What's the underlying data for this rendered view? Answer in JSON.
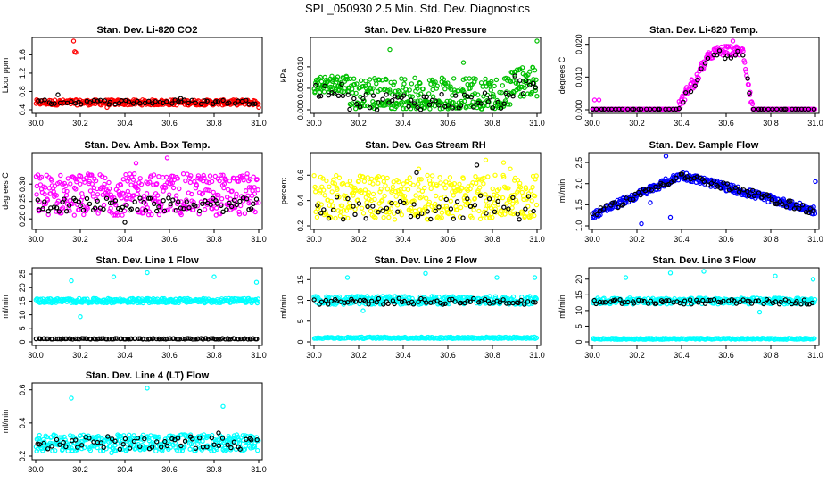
{
  "title": "SPL_050930  2.5 Min. Std. Dev. Diagnostics",
  "colors": {
    "black": "#000000",
    "red": "#ff0000",
    "green": "#00c000",
    "magenta": "#ff00ff",
    "yellow": "#ffff00",
    "blue": "#0000ff",
    "cyan": "#00ffff"
  },
  "chart_data": [
    {
      "type": "scatter",
      "title": "Stan. Dev. Li-820 CO2",
      "ylabel": "Licor ppm",
      "xlim": [
        30.0,
        31.0
      ],
      "ylim": [
        0.4,
        1.9
      ],
      "xticks": [
        30.0,
        30.2,
        30.4,
        30.6,
        30.8,
        31.0
      ],
      "xtick_labels": [
        "30.0",
        "30.2",
        "30.4",
        "30.6",
        "30.8",
        "31.0"
      ],
      "yticks": [
        0.4,
        0.8,
        1.2,
        1.6
      ],
      "ytick_labels": [
        "0.4",
        "0.8",
        "1.2",
        "1.6"
      ],
      "series": [
        {
          "color": "red",
          "band": [
            0.5,
            0.62
          ],
          "n": 330,
          "outliers": [
            [
              30.17,
              1.9
            ],
            [
              30.175,
              1.67
            ],
            [
              30.18,
              1.65
            ],
            [
              30.32,
              0.45
            ],
            [
              31.0,
              0.45
            ]
          ]
        },
        {
          "color": "black",
          "band": [
            0.52,
            0.62
          ],
          "n": 60,
          "outliers": [
            [
              30.1,
              0.73
            ],
            [
              30.65,
              0.65
            ]
          ]
        }
      ]
    },
    {
      "type": "scatter",
      "title": "Stan. Dev. Li-820 Pressure",
      "ylabel": "kPa",
      "xlim": [
        30.0,
        31.0
      ],
      "ylim": [
        0.0,
        0.016
      ],
      "xticks": [
        30.0,
        30.2,
        30.4,
        30.6,
        30.8,
        31.0
      ],
      "xtick_labels": [
        "30.0",
        "30.2",
        "30.4",
        "30.6",
        "30.8",
        "31.0"
      ],
      "yticks": [
        0.0,
        0.005,
        0.01
      ],
      "ytick_labels": [
        "0.000",
        "0.005",
        "0.010"
      ],
      "series": [
        {
          "color": "green",
          "shape": "pressure",
          "n": 420,
          "outliers": [
            [
              30.34,
              0.014
            ],
            [
              30.67,
              0.011
            ],
            [
              31.0,
              0.0165
            ]
          ]
        },
        {
          "color": "black",
          "shape": "pressure_low",
          "n": 70,
          "outliers": []
        }
      ]
    },
    {
      "type": "scatter",
      "title": "Stan. Dev. Li-820 Temp.",
      "ylabel": "degrees C",
      "xlim": [
        30.0,
        31.0
      ],
      "ylim": [
        0.0,
        0.021
      ],
      "xticks": [
        30.0,
        30.2,
        30.4,
        30.6,
        30.8,
        31.0
      ],
      "xtick_labels": [
        "30.0",
        "30.2",
        "30.4",
        "30.6",
        "30.8",
        "31.0"
      ],
      "yticks": [
        0.0,
        0.01,
        0.02
      ],
      "ytick_labels": [
        "0.000",
        "0.010",
        "0.020"
      ],
      "series": [
        {
          "color": "magenta",
          "shape": "hump",
          "n": 320,
          "outliers": [
            [
              30.01,
              0.003
            ],
            [
              30.03,
              0.003
            ],
            [
              30.63,
              0.021
            ]
          ]
        },
        {
          "color": "black",
          "shape": "hump_low",
          "n": 60,
          "outliers": []
        }
      ]
    },
    {
      "type": "scatter",
      "title": "Stan. Dev. Amb. Box Temp.",
      "ylabel": "degrees C",
      "xlim": [
        30.0,
        31.0
      ],
      "ylim": [
        0.18,
        0.38
      ],
      "xticks": [
        30.0,
        30.2,
        30.4,
        30.6,
        30.8,
        31.0
      ],
      "xtick_labels": [
        "30.0",
        "30.2",
        "30.4",
        "30.6",
        "30.8",
        "31.0"
      ],
      "yticks": [
        0.2,
        0.25,
        0.3
      ],
      "ytick_labels": [
        "0.20",
        "0.25",
        "0.30"
      ],
      "series": [
        {
          "color": "magenta",
          "band": [
            0.21,
            0.33
          ],
          "n": 380,
          "outliers": [
            [
              30.59,
              0.375
            ],
            [
              30.45,
              0.36
            ]
          ]
        },
        {
          "color": "black",
          "band": [
            0.22,
            0.26
          ],
          "n": 80,
          "outliers": [
            [
              30.4,
              0.19
            ]
          ]
        }
      ]
    },
    {
      "type": "scatter",
      "title": "Stan. Dev. Gas Stream RH",
      "ylabel": "percent",
      "xlim": [
        30.0,
        31.0
      ],
      "ylim": [
        0.2,
        0.75
      ],
      "xticks": [
        30.0,
        30.2,
        30.4,
        30.6,
        30.8,
        31.0
      ],
      "xtick_labels": [
        "30.0",
        "30.2",
        "30.4",
        "30.6",
        "30.8",
        "31.0"
      ],
      "yticks": [
        0.2,
        0.4,
        0.6
      ],
      "ytick_labels": [
        "0.2",
        "0.4",
        "0.6"
      ],
      "series": [
        {
          "color": "yellow",
          "band": [
            0.25,
            0.6
          ],
          "n": 380,
          "outliers": [
            [
              30.77,
              0.72
            ],
            [
              30.85,
              0.7
            ],
            [
              30.47,
              0.65
            ],
            [
              30.88,
              0.65
            ]
          ]
        },
        {
          "color": "black",
          "band": [
            0.25,
            0.45
          ],
          "n": 50,
          "outliers": [
            [
              30.46,
              0.62
            ],
            [
              30.73,
              0.68
            ]
          ]
        }
      ]
    },
    {
      "type": "scatter",
      "title": "Stan. Dev. Sample Flow",
      "ylabel": "ml/min",
      "xlim": [
        30.0,
        31.0
      ],
      "ylim": [
        1.0,
        2.65
      ],
      "xticks": [
        30.0,
        30.2,
        30.4,
        30.6,
        30.8,
        31.0
      ],
      "xtick_labels": [
        "30.0",
        "30.2",
        "30.4",
        "30.6",
        "30.8",
        "31.0"
      ],
      "yticks": [
        1.0,
        1.5,
        2.0,
        2.5
      ],
      "ytick_labels": [
        "1.0",
        "1.5",
        "2.0",
        "2.5"
      ],
      "series": [
        {
          "color": "blue",
          "shape": "arch",
          "n": 340,
          "outliers": [
            [
              30.33,
              2.65
            ],
            [
              30.26,
              1.55
            ],
            [
              30.35,
              1.2
            ],
            [
              30.22,
              1.05
            ],
            [
              31.0,
              2.05
            ]
          ]
        },
        {
          "color": "black",
          "shape": "arch",
          "n": 80,
          "outliers": []
        }
      ]
    },
    {
      "type": "scatter",
      "title": "Stan. Dev. Line 1 Flow",
      "ylabel": "ml/min",
      "xlim": [
        30.0,
        31.0
      ],
      "ylim": [
        0,
        26
      ],
      "xticks": [
        30.0,
        30.2,
        30.4,
        30.6,
        30.8,
        31.0
      ],
      "xtick_labels": [
        "30.0",
        "30.2",
        "30.4",
        "30.6",
        "30.8",
        "31.0"
      ],
      "yticks": [
        0,
        5,
        10,
        15,
        20,
        25
      ],
      "ytick_labels": [
        "0",
        "5",
        "10",
        "15",
        "20",
        "25"
      ],
      "series": [
        {
          "color": "cyan",
          "band": [
            14.3,
            16
          ],
          "n": 300,
          "outliers": [
            [
              30.16,
              22.5
            ],
            [
              30.2,
              9.3
            ],
            [
              30.35,
              24
            ],
            [
              30.5,
              25.5
            ],
            [
              30.8,
              24
            ],
            [
              30.99,
              22
            ]
          ]
        },
        {
          "color": "black",
          "band": [
            1,
            1.3
          ],
          "n": 110,
          "outliers": []
        }
      ]
    },
    {
      "type": "scatter",
      "title": "Stan. Dev. Line 2 Flow",
      "ylabel": "ml/min",
      "xlim": [
        30.0,
        31.0
      ],
      "ylim": [
        0,
        17
      ],
      "xticks": [
        30.0,
        30.2,
        30.4,
        30.6,
        30.8,
        31.0
      ],
      "xtick_labels": [
        "30.0",
        "30.2",
        "30.4",
        "30.6",
        "30.8",
        "31.0"
      ],
      "yticks": [
        0,
        5,
        10,
        15
      ],
      "ytick_labels": [
        "0",
        "5",
        "10",
        "15"
      ],
      "series": [
        {
          "color": "cyan",
          "band": [
            9,
            11
          ],
          "n": 300,
          "outliers": [
            [
              30.15,
              15.5
            ],
            [
              30.5,
              16.5
            ],
            [
              30.82,
              15.5
            ],
            [
              30.99,
              15.5
            ],
            [
              30.22,
              7.5
            ]
          ]
        },
        {
          "color": "cyan",
          "band": [
            0.8,
            1.2
          ],
          "n": 200,
          "outliers": []
        },
        {
          "color": "black",
          "band": [
            9,
            10.5
          ],
          "n": 70,
          "outliers": []
        }
      ]
    },
    {
      "type": "scatter",
      "title": "Stan. Dev. Line 3 Flow",
      "ylabel": "ml/min",
      "xlim": [
        30.0,
        31.0
      ],
      "ylim": [
        0,
        22.5
      ],
      "xticks": [
        30.0,
        30.2,
        30.4,
        30.6,
        30.8,
        31.0
      ],
      "xtick_labels": [
        "30.0",
        "30.2",
        "30.4",
        "30.6",
        "30.8",
        "31.0"
      ],
      "yticks": [
        0,
        5,
        10,
        15,
        20
      ],
      "ytick_labels": [
        "0",
        "5",
        "10",
        "15",
        "20"
      ],
      "series": [
        {
          "color": "cyan",
          "band": [
            12,
            14
          ],
          "n": 300,
          "outliers": [
            [
              30.15,
              20.5
            ],
            [
              30.35,
              22
            ],
            [
              30.5,
              22.5
            ],
            [
              30.82,
              21
            ],
            [
              30.99,
              20
            ],
            [
              30.75,
              9.5
            ]
          ]
        },
        {
          "color": "cyan",
          "band": [
            0.8,
            1.2
          ],
          "n": 200,
          "outliers": []
        },
        {
          "color": "black",
          "band": [
            12,
            13.5
          ],
          "n": 70,
          "outliers": []
        }
      ]
    },
    {
      "type": "scatter",
      "title": "Stan. Dev. Line 4 (LT) Flow",
      "ylabel": "ml/min",
      "xlim": [
        30.0,
        31.0
      ],
      "ylim": [
        0.2,
        0.62
      ],
      "xticks": [
        30.0,
        30.2,
        30.4,
        30.6,
        30.8,
        31.0
      ],
      "xtick_labels": [
        "30.0",
        "30.2",
        "30.4",
        "30.6",
        "30.8",
        "31.0"
      ],
      "yticks": [
        0.2,
        0.4,
        0.6
      ],
      "ytick_labels": [
        "0.2",
        "0.4",
        "0.6"
      ],
      "series": [
        {
          "color": "cyan",
          "band": [
            0.23,
            0.33
          ],
          "n": 360,
          "outliers": [
            [
              30.16,
              0.55
            ],
            [
              30.5,
              0.61
            ],
            [
              30.84,
              0.5
            ],
            [
              30.34,
              0.22
            ]
          ]
        },
        {
          "color": "black",
          "band": [
            0.24,
            0.32
          ],
          "n": 60,
          "outliers": [
            [
              30.82,
              0.34
            ]
          ]
        }
      ]
    }
  ]
}
